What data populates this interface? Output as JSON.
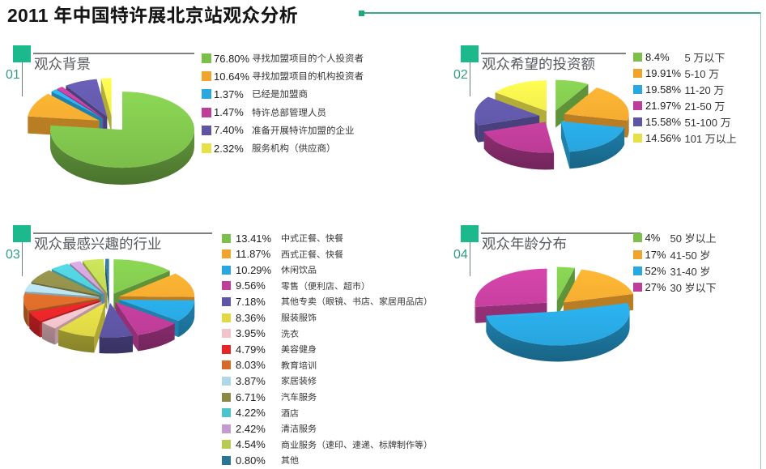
{
  "page": {
    "title": "2011 年中国特许展北京站观众分析"
  },
  "theme": {
    "marker_green": "#1cb98c",
    "accent_teal": "#2f9e85",
    "rule_gray": "#8c8c8c",
    "deco_line_green": "#3aa98a"
  },
  "chart_data": [
    {
      "type": "pie",
      "id": "audience-background",
      "number": "01",
      "title": "观众背景",
      "legend_position": "right",
      "slices": [
        {
          "value": 76.8,
          "pct": "76.80%",
          "label": "寻找加盟项目的个人投资者",
          "color": "#7cbf4b"
        },
        {
          "value": 10.64,
          "pct": "10.64%",
          "label": "寻找加盟项目的机构投资者",
          "color": "#f0a42e"
        },
        {
          "value": 1.37,
          "pct": "1.37%",
          "label": "已经是加盟商",
          "color": "#28a7e0"
        },
        {
          "value": 1.47,
          "pct": "1.47%",
          "label": "特许总部管理人员",
          "color": "#be3d98"
        },
        {
          "value": 7.4,
          "pct": "7.40%",
          "label": "准备开展特许加盟的企业",
          "color": "#5e55a4"
        },
        {
          "value": 2.32,
          "pct": "2.32%",
          "label": "服务机构（供应商）",
          "color": "#e7e149"
        }
      ]
    },
    {
      "type": "pie",
      "id": "hoped-investment",
      "number": "02",
      "title": "观众希望的投资额",
      "legend_position": "right",
      "slices": [
        {
          "value": 8.4,
          "pct": "8.4%",
          "label": "5 万以下",
          "color": "#7cbf4b"
        },
        {
          "value": 19.91,
          "pct": "19.91%",
          "label": "5-10 万",
          "color": "#f0a42e"
        },
        {
          "value": 19.58,
          "pct": "19.58%",
          "label": "11-20 万",
          "color": "#28a7e0"
        },
        {
          "value": 21.97,
          "pct": "21.97%",
          "label": "21-50 万",
          "color": "#be3d98"
        },
        {
          "value": 15.58,
          "pct": "15.58%",
          "label": "51-100 万",
          "color": "#5e55a4"
        },
        {
          "value": 14.56,
          "pct": "14.56%",
          "label": "101 万以上",
          "color": "#e7e149"
        }
      ]
    },
    {
      "type": "pie",
      "id": "interested-industries",
      "number": "03",
      "title": "观众最感兴趣的行业",
      "legend_position": "right",
      "slices": [
        {
          "value": 13.41,
          "pct": "13.41%",
          "label": "中式正餐、快餐",
          "color": "#7cbf4b"
        },
        {
          "value": 11.87,
          "pct": "11.87%",
          "label": "西式正餐、快餐",
          "color": "#f0a42e"
        },
        {
          "value": 10.29,
          "pct": "10.29%",
          "label": "休闲饮品",
          "color": "#28a7e0"
        },
        {
          "value": 9.56,
          "pct": "9.56%",
          "label": "零售（便利店、超市）",
          "color": "#be3d98"
        },
        {
          "value": 7.18,
          "pct": "7.18%",
          "label": "其他专卖（眼镜、书店、家居用品店）",
          "color": "#5e55a4"
        },
        {
          "value": 8.36,
          "pct": "8.36%",
          "label": "服装服饰",
          "color": "#e0d945"
        },
        {
          "value": 3.95,
          "pct": "3.95%",
          "label": "洗衣",
          "color": "#f2c3cb"
        },
        {
          "value": 4.79,
          "pct": "4.79%",
          "label": "美容健身",
          "color": "#e62529"
        },
        {
          "value": 8.03,
          "pct": "8.03%",
          "label": "教育培训",
          "color": "#d66a28"
        },
        {
          "value": 3.87,
          "pct": "3.87%",
          "label": "家居装修",
          "color": "#b0d7e6"
        },
        {
          "value": 6.71,
          "pct": "6.71%",
          "label": "汽车服务",
          "color": "#8b8848"
        },
        {
          "value": 4.22,
          "pct": "4.22%",
          "label": "酒店",
          "color": "#4cc4cf"
        },
        {
          "value": 2.42,
          "pct": "2.42%",
          "label": "清洁服务",
          "color": "#c49bce"
        },
        {
          "value": 4.54,
          "pct": "4.54%",
          "label": "商业服务（速印、速递、标牌制作等）",
          "color": "#b7cc51"
        },
        {
          "value": 0.8,
          "pct": "0.80%",
          "label": "其他",
          "color": "#2d7494"
        }
      ]
    },
    {
      "type": "pie",
      "id": "age-distribution",
      "number": "04",
      "title": "观众年龄分布",
      "legend_position": "right",
      "slices": [
        {
          "value": 4,
          "pct": "4%",
          "label": "50 岁以上",
          "color": "#7cbf4b"
        },
        {
          "value": 17,
          "pct": "17%",
          "label": "41-50 岁",
          "color": "#f0a42e"
        },
        {
          "value": 52,
          "pct": "52%",
          "label": "31-40 岁",
          "color": "#28a7e0"
        },
        {
          "value": 27,
          "pct": "27%",
          "label": "30 岁以下",
          "color": "#be3d98"
        }
      ]
    }
  ]
}
